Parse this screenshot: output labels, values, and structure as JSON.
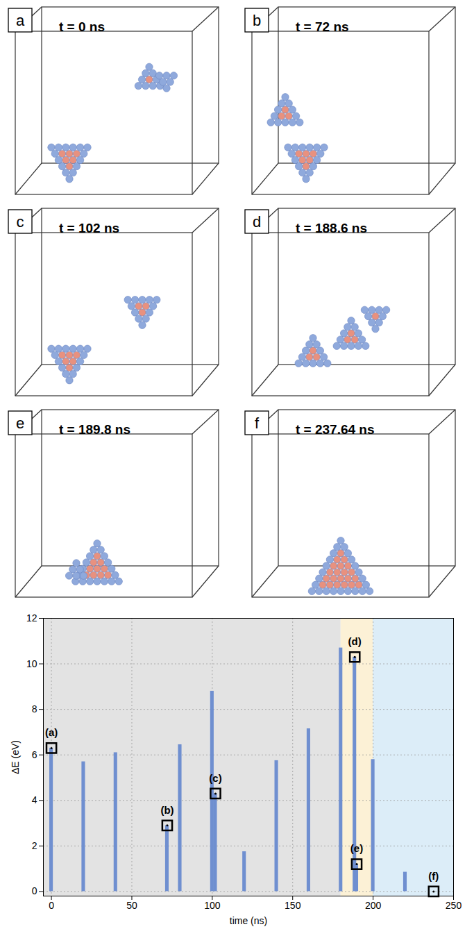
{
  "panels": [
    {
      "label": "a",
      "time": "t = 0 ns"
    },
    {
      "label": "b",
      "time": "t = 72 ns"
    },
    {
      "label": "c",
      "time": "t = 102 ns"
    },
    {
      "label": "d",
      "time": "t = 188.6 ns"
    },
    {
      "label": "e",
      "time": "t = 189.8 ns"
    },
    {
      "label": "f",
      "time": "t = 237.64 ns"
    }
  ],
  "chart_data": {
    "type": "bar",
    "x_label": "time (ns)",
    "y_label": "ΔE (eV)",
    "x": [
      0,
      20,
      40,
      72,
      80,
      100,
      102,
      120,
      140,
      160,
      180,
      188.6,
      189.8,
      200,
      220,
      237.64
    ],
    "values": [
      6.3,
      5.7,
      6.1,
      2.9,
      6.45,
      8.8,
      4.3,
      1.75,
      5.75,
      7.15,
      10.7,
      10.3,
      1.2,
      5.8,
      0.85,
      0
    ],
    "color": "#6f8fd0",
    "xlim": [
      -5,
      250
    ],
    "xticks": [
      0,
      50,
      100,
      150,
      200,
      250
    ],
    "ylim": [
      -0.2,
      12
    ],
    "yticks": [
      0,
      2,
      4,
      6,
      8,
      10,
      12
    ],
    "grid": true,
    "regions": [
      {
        "start": -5,
        "end": 180,
        "color": "#e3e3e3"
      },
      {
        "start": 180,
        "end": 200,
        "color": "#fcf1d6"
      },
      {
        "start": 200,
        "end": 250,
        "color": "#dcedf8"
      }
    ],
    "annotations": [
      {
        "text": "(a)",
        "x": 0,
        "y": 6.3
      },
      {
        "text": "(b)",
        "x": 72,
        "y": 2.9
      },
      {
        "text": "(c)",
        "x": 102,
        "y": 4.3
      },
      {
        "text": "(d)",
        "x": 188.6,
        "y": 10.3
      },
      {
        "text": "(e)",
        "x": 189.8,
        "y": 1.2
      },
      {
        "text": "(f)",
        "x": 237.64,
        "y": 0
      }
    ]
  }
}
